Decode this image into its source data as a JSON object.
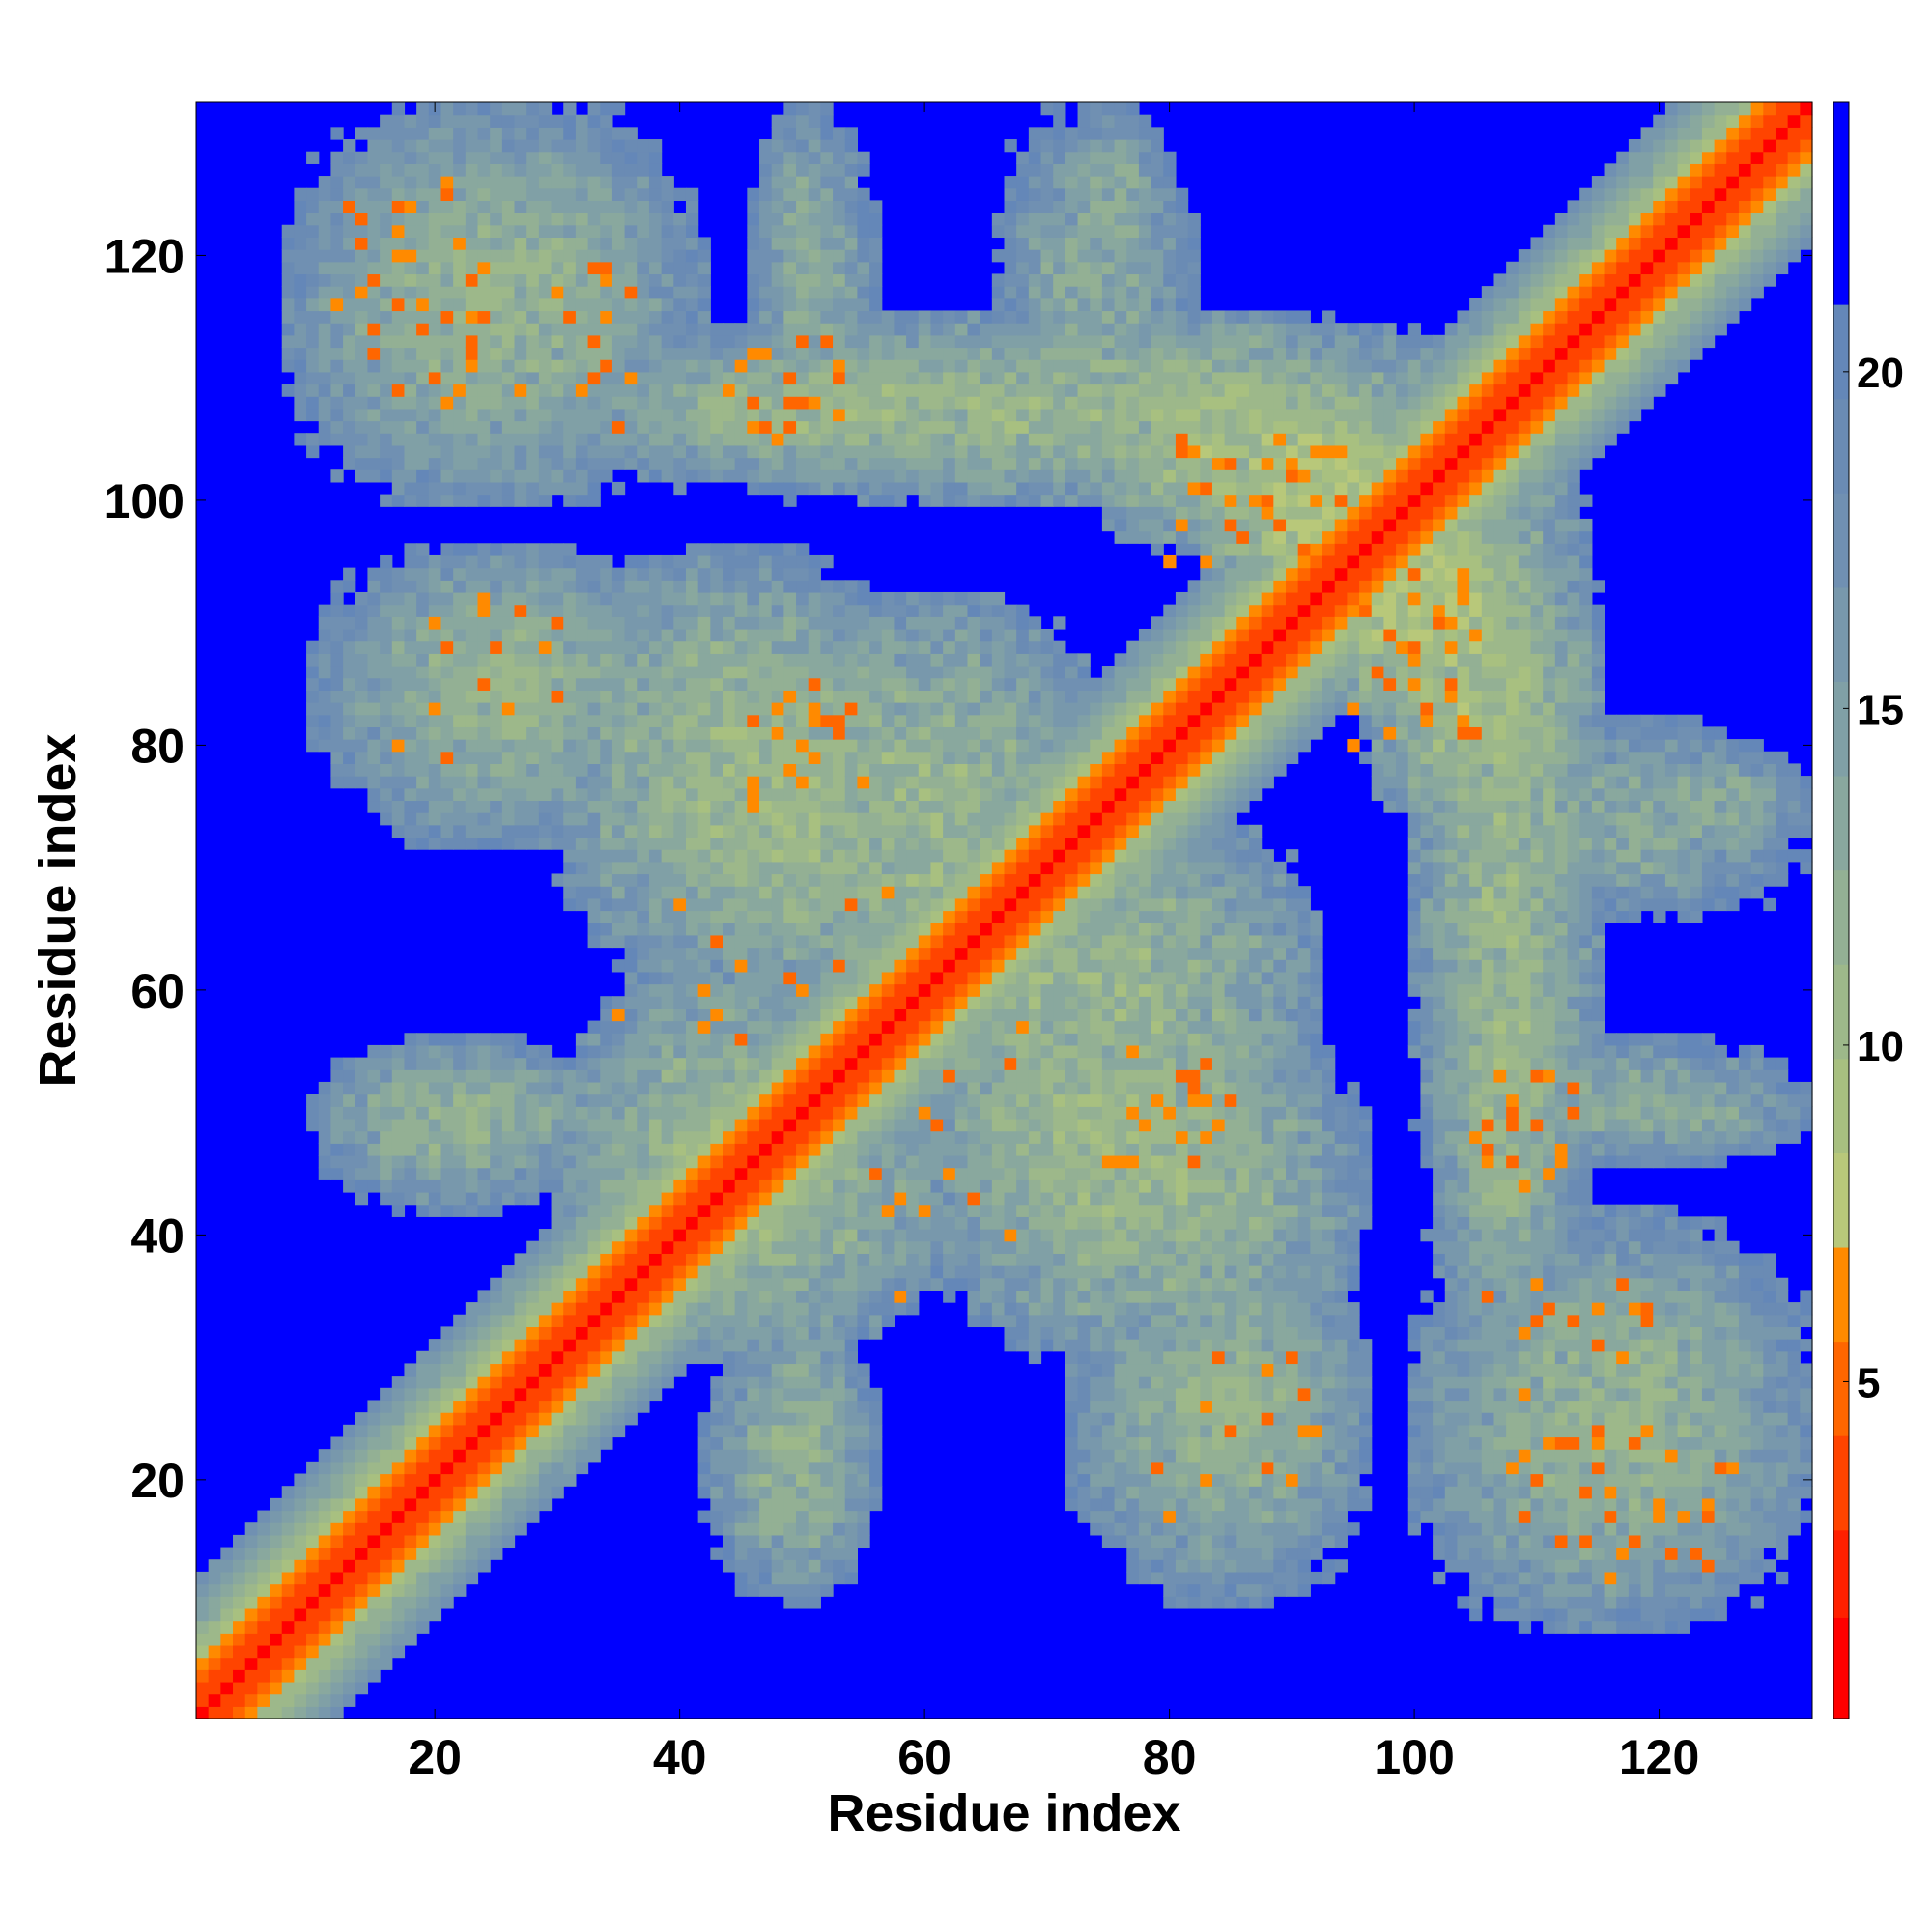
{
  "chart_data": {
    "type": "heatmap",
    "title": "",
    "xlabel": "Residue index",
    "ylabel": "Residue index",
    "n_residues": 132,
    "xlim": [
      1,
      132
    ],
    "ylim": [
      1,
      132
    ],
    "x_ticks": [
      20,
      40,
      60,
      80,
      100,
      120
    ],
    "y_ticks": [
      20,
      40,
      60,
      80,
      100,
      120
    ],
    "x_tick_labels": [
      "20",
      "40",
      "60",
      "80",
      "100",
      "120"
    ],
    "y_tick_labels": [
      "20",
      "40",
      "60",
      "80",
      "100",
      "120"
    ],
    "grid": false,
    "colorbar": {
      "position": "right",
      "range": [
        0,
        24
      ],
      "ticks": [
        5,
        10,
        15,
        20
      ],
      "tick_labels": [
        "5",
        "10",
        "15",
        "20"
      ],
      "levels": [
        {
          "from": 0,
          "to": 1.5,
          "color": "#ff0000"
        },
        {
          "from": 1.5,
          "to": 2.8,
          "color": "#ff2000"
        },
        {
          "from": 2.8,
          "to": 4.2,
          "color": "#ff4400"
        },
        {
          "from": 4.2,
          "to": 5.6,
          "color": "#ff6600"
        },
        {
          "from": 5.6,
          "to": 7.0,
          "color": "#ff8a00"
        },
        {
          "from": 7.0,
          "to": 8.4,
          "color": "#b8c87a"
        },
        {
          "from": 8.4,
          "to": 9.8,
          "color": "#a8c080"
        },
        {
          "from": 9.8,
          "to": 11.2,
          "color": "#9db88a"
        },
        {
          "from": 11.2,
          "to": 12.6,
          "color": "#93b094"
        },
        {
          "from": 12.6,
          "to": 14.0,
          "color": "#89a89e"
        },
        {
          "from": 14.0,
          "to": 15.4,
          "color": "#80a0a6"
        },
        {
          "from": 15.4,
          "to": 16.8,
          "color": "#7898ac"
        },
        {
          "from": 16.8,
          "to": 18.2,
          "color": "#7090b2"
        },
        {
          "from": 18.2,
          "to": 19.6,
          "color": "#6a8bb4"
        },
        {
          "from": 19.6,
          "to": 21.0,
          "color": "#6487b8"
        },
        {
          "from": 21.0,
          "to": 24.0,
          "color": "#0000ff"
        }
      ]
    },
    "background_value": 24,
    "diagonal_value": 0,
    "contact_regions": [
      {
        "x": [
          1,
          132
        ],
        "y": [
          1,
          132
        ],
        "kind": "diagonal-band",
        "width": 7
      },
      {
        "x": [
          8,
          38
        ],
        "y": [
          100,
          132
        ],
        "value": 13
      },
      {
        "x": [
          30,
          112
        ],
        "y": [
          100,
          115
        ],
        "value": 12
      },
      {
        "x": [
          46,
          54
        ],
        "y": [
          110,
          132
        ],
        "value": 14
      },
      {
        "x": [
          70,
          80
        ],
        "y": [
          118,
          132
        ],
        "value": 14
      },
      {
        "x": [
          82,
          100
        ],
        "y": [
          92,
          110
        ],
        "value": 9
      },
      {
        "x": [
          12,
          40
        ],
        "y": [
          72,
          96
        ],
        "value": 13
      },
      {
        "x": [
          30,
          58
        ],
        "y": [
          60,
          96
        ],
        "value": 12
      },
      {
        "x": [
          44,
          76
        ],
        "y": [
          56,
          92
        ],
        "value": 12
      },
      {
        "x": [
          96,
          115
        ],
        "y": [
          72,
          96
        ],
        "value": 11
      },
      {
        "x": [
          105,
          132
        ],
        "y": [
          66,
          82
        ],
        "value": 14
      },
      {
        "x": [
          102,
          113
        ],
        "y": [
          30,
          78
        ],
        "value": 12
      },
      {
        "x": [
          11,
          32
        ],
        "y": [
          42,
          56
        ],
        "value": 13
      },
      {
        "x": [
          30,
          58
        ],
        "y": [
          30,
          62
        ],
        "value": 12
      },
      {
        "x": [
          58,
          92
        ],
        "y": [
          36,
          62
        ],
        "value": 12
      },
      {
        "x": [
          74,
          96
        ],
        "y": [
          10,
          40
        ],
        "value": 13
      },
      {
        "x": [
          45,
          55
        ],
        "y": [
          10,
          35
        ],
        "value": 13
      },
      {
        "x": [
          100,
          132
        ],
        "y": [
          10,
          42
        ],
        "value": 13
      },
      {
        "x": [
          103,
          132
        ],
        "y": [
          46,
          56
        ],
        "value": 14
      }
    ],
    "hotspots": [
      {
        "x": [
          13,
          37
        ],
        "y": [
          107,
          125
        ],
        "count": 28
      },
      {
        "x": [
          44,
          54
        ],
        "y": [
          105,
          113
        ],
        "count": 10
      },
      {
        "x": [
          80,
          97
        ],
        "y": [
          94,
          106
        ],
        "count": 16
      },
      {
        "x": [
          98,
          107
        ],
        "y": [
          80,
          95
        ],
        "count": 12
      },
      {
        "x": [
          48,
          55
        ],
        "y": [
          74,
          84
        ],
        "count": 10
      },
      {
        "x": [
          75,
          85
        ],
        "y": [
          46,
          56
        ],
        "count": 10
      },
      {
        "x": [
          105,
          114
        ],
        "y": [
          46,
          53
        ],
        "count": 8
      },
      {
        "x": [
          106,
          118
        ],
        "y": [
          28,
          35
        ],
        "count": 8
      },
      {
        "x": [
          112,
          127
        ],
        "y": [
          12,
          24
        ],
        "count": 12
      },
      {
        "x": [
          16,
          32
        ],
        "y": [
          78,
          92
        ],
        "count": 10
      },
      {
        "x": [
          34,
          66
        ],
        "y": [
          38,
          72
        ],
        "count": 14
      },
      {
        "x": [
          84,
          92
        ],
        "y": [
          16,
          32
        ],
        "count": 6
      }
    ]
  }
}
